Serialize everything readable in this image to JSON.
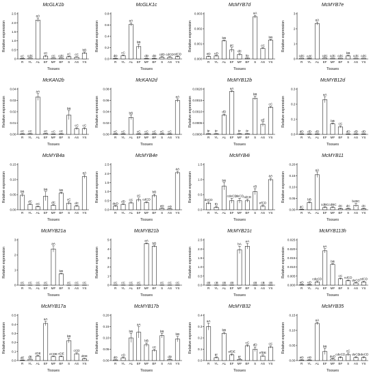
{
  "common": {
    "ylabel": "Relative expression",
    "xlabel": "Tissues"
  },
  "chart_data": [
    {
      "type": "bar",
      "title": "McGLK1b",
      "ymax": 2.5,
      "ticks": [
        [
          0,
          "0"
        ],
        [
          0.5,
          "0.5"
        ],
        [
          1.0,
          "1.0"
        ],
        [
          1.5,
          "1.5"
        ],
        [
          2.0,
          "2.0"
        ],
        [
          2.5,
          "2.5"
        ]
      ],
      "categories": [
        "R",
        "YL",
        "AL",
        "EF",
        "MF",
        "BF",
        "S",
        "AS",
        "YS"
      ],
      "values": [
        0.03,
        0.05,
        2.15,
        0.15,
        0.05,
        0.05,
        0.12,
        0.1,
        0.33
      ],
      "errors": [
        0.01,
        0.01,
        0.12,
        0.05,
        0.01,
        0.01,
        0.03,
        0.02,
        0.05
      ],
      "labels": [
        "cC",
        "cdC",
        "aA",
        "cC",
        "cC",
        "cdC",
        "cC",
        "cC",
        "bB"
      ]
    },
    {
      "type": "bar",
      "title": "McGLK1c",
      "ymax": 0.8,
      "ticks": [
        [
          0,
          "0.0"
        ],
        [
          0.2,
          "0.2"
        ],
        [
          0.4,
          "0.4"
        ],
        [
          0.6,
          "0.6"
        ],
        [
          0.8,
          "0.8"
        ]
      ],
      "categories": [
        "R",
        "YL",
        "AL",
        "EF",
        "MF",
        "BF",
        "S",
        "AS",
        "YS"
      ],
      "values": [
        0.01,
        0.06,
        0.61,
        0.22,
        0.01,
        0.01,
        0.03,
        0.03,
        0.04
      ],
      "errors": [
        0.005,
        0.01,
        0.03,
        0.04,
        0.005,
        0.005,
        0.01,
        0.01,
        0.01
      ],
      "labels": [
        "dD",
        "cC",
        "aA",
        "bB",
        "dD",
        "dD",
        "cdD",
        "cdCD",
        "cdCD"
      ]
    },
    {
      "type": "bar",
      "title": "McMYB7d",
      "ymax": 0.003,
      "ticks": [
        [
          0,
          "0.000"
        ],
        [
          0.001,
          "0.001"
        ],
        [
          0.002,
          "0.002"
        ],
        [
          0.003,
          "0.003"
        ]
      ],
      "categories": [
        "R",
        "YL",
        "AL",
        "EF",
        "MF",
        "BF",
        "S",
        "AS",
        "YS"
      ],
      "values": [
        0.00016,
        0.0002,
        0.0012,
        0.0006,
        0.0003,
        5e-05,
        0.0028,
        0.0007,
        0.00125
      ],
      "errors": [
        3e-05,
        3e-05,
        4e-05,
        0.00015,
        8e-05,
        2e-05,
        0.0001,
        5e-05,
        5e-05
      ],
      "labels": [
        "eD",
        "eD",
        "bB",
        "dC",
        "dC",
        "fD",
        "aA",
        "cC",
        "bB"
      ]
    },
    {
      "type": "bar",
      "title": "McMYB7e",
      "ymax": 3,
      "ticks": [
        [
          0,
          "0"
        ],
        [
          1,
          "1"
        ],
        [
          2,
          "2"
        ],
        [
          3,
          "3"
        ]
      ],
      "categories": [
        "R",
        "YL",
        "AL",
        "EF",
        "MF",
        "BF",
        "S",
        "AS",
        "YS"
      ],
      "values": [
        0.05,
        0.04,
        2.35,
        0.06,
        0.05,
        0.05,
        0.2,
        0.05,
        0.05
      ],
      "errors": [
        0.01,
        0.01,
        0.1,
        0.01,
        0.01,
        0.01,
        0.04,
        0.01,
        0.01
      ],
      "labels": [
        "cdC",
        "cdC",
        "aA",
        "cdC",
        "cdC",
        "cdC",
        "bB",
        "cdC",
        "cdC"
      ]
    },
    {
      "type": "bar",
      "title": "McKAN2b",
      "ymax": 0.04,
      "ticks": [
        [
          0,
          "0.00"
        ],
        [
          0.01,
          "0.01"
        ],
        [
          0.02,
          "0.02"
        ],
        [
          0.03,
          "0.03"
        ],
        [
          0.04,
          "0.04"
        ]
      ],
      "categories": [
        "R",
        "YL",
        "AL",
        "EF",
        "MF",
        "BF",
        "S",
        "AS",
        "YS"
      ],
      "values": [
        0.0005,
        0.0006,
        0.033,
        0.0007,
        0.0004,
        0.0005,
        0.017,
        0.005,
        0.005
      ],
      "errors": [
        0.0002,
        0.0002,
        0.003,
        0.0002,
        0.0001,
        0.0002,
        0.004,
        0.001,
        0.001
      ],
      "labels": [
        "cC",
        "cC",
        "aA",
        "cC",
        "cC",
        "cC",
        "bB",
        "cC",
        "cC"
      ]
    },
    {
      "type": "bar",
      "title": "McKAN2d",
      "ymax": 0.08,
      "ticks": [
        [
          0,
          "0.00"
        ],
        [
          0.02,
          "0.02"
        ],
        [
          0.04,
          "0.04"
        ],
        [
          0.06,
          "0.06"
        ],
        [
          0.08,
          "0.08"
        ]
      ],
      "categories": [
        "R",
        "YL",
        "AL",
        "EF",
        "MF",
        "BF",
        "S",
        "AS",
        "YS"
      ],
      "values": [
        0.001,
        0.001,
        0.03,
        0.001,
        0.001,
        0.001,
        0.001,
        0.001,
        0.06
      ],
      "errors": [
        0.0003,
        0.0003,
        0.004,
        0.0003,
        0.0003,
        0.0003,
        0.0003,
        0.0003,
        0.003
      ],
      "labels": [
        "cC",
        "cC",
        "bB",
        "cC",
        "cC",
        "cC",
        "cC",
        "cC",
        "aA"
      ]
    },
    {
      "type": "bar",
      "title": "McMYB12b",
      "ymax": 0.002,
      "ticks": [
        [
          0,
          "0.0000"
        ],
        [
          0.0005,
          "0.0005"
        ],
        [
          0.001,
          "0.0010"
        ],
        [
          0.0015,
          "0.0015"
        ],
        [
          0.002,
          "0.0020"
        ]
      ],
      "categories": [
        "R",
        "YL",
        "AL",
        "EF",
        "MF",
        "BF",
        "S",
        "AS",
        "YS"
      ],
      "values": [
        3e-05,
        3e-05,
        0.00085,
        0.0019,
        3e-05,
        3e-05,
        0.0016,
        0.00045,
        0.0012
      ],
      "errors": [
        1e-05,
        1e-05,
        5e-05,
        4e-05,
        1e-05,
        1e-05,
        8e-05,
        0.0001,
        4e-05
      ],
      "labels": [
        "fF",
        "fF",
        "dD",
        "aA",
        "fF",
        "fF",
        "bB",
        "eE",
        "cC"
      ]
    },
    {
      "type": "bar",
      "title": "McMYB12d",
      "ymax": 0.3,
      "ticks": [
        [
          0,
          "0.0"
        ],
        [
          0.1,
          "0.1"
        ],
        [
          0.2,
          "0.2"
        ],
        [
          0.3,
          "0.3"
        ]
      ],
      "categories": [
        "R",
        "YL",
        "AL",
        "EF",
        "MF",
        "BF",
        "S",
        "AS",
        "YS"
      ],
      "values": [
        0.003,
        0.003,
        0.003,
        0.23,
        0.07,
        0.05,
        0.003,
        0.003,
        0.003
      ],
      "errors": [
        0.001,
        0.001,
        0.001,
        0.02,
        0.005,
        0.006,
        0.001,
        0.001,
        0.001
      ],
      "labels": [
        "dD",
        "dD",
        "dD",
        "aA",
        "bB",
        "cC",
        "dD",
        "dD",
        "dD"
      ]
    },
    {
      "type": "bar",
      "title": "McMYB4a",
      "ymax": 0.15,
      "ticks": [
        [
          0,
          "0.00"
        ],
        [
          0.05,
          "0.05"
        ],
        [
          0.1,
          "0.10"
        ],
        [
          0.15,
          "0.15"
        ]
      ],
      "categories": [
        "R",
        "YL",
        "AL",
        "EF",
        "MF",
        "BF",
        "S",
        "AS",
        "YS"
      ],
      "values": [
        0.048,
        0.018,
        0.01,
        0.045,
        0.015,
        0.055,
        0.022,
        0.012,
        0.11
      ],
      "errors": [
        0.005,
        0.002,
        0.002,
        0.015,
        0.002,
        0.003,
        0.005,
        0.002,
        0.006
      ],
      "labels": [
        "bB",
        "dC",
        "eC",
        "bB",
        "dC",
        "bB",
        "cC",
        "dC",
        "aA"
      ]
    },
    {
      "type": "bar",
      "title": "McMYB4e",
      "ymax": 2.5,
      "ticks": [
        [
          0,
          "0.0"
        ],
        [
          0.5,
          "0.5"
        ],
        [
          1.0,
          "1.0"
        ],
        [
          1.5,
          "1.5"
        ],
        [
          2.0,
          "2.0"
        ],
        [
          2.5,
          "2.5"
        ]
      ],
      "categories": [
        "R",
        "YL",
        "AL",
        "EF",
        "MF",
        "BF",
        "S",
        "AS",
        "YS"
      ],
      "values": [
        0.2,
        0.3,
        0.38,
        0.55,
        0.4,
        0.78,
        0.08,
        0.05,
        2.05
      ],
      "errors": [
        0.03,
        0.03,
        0.05,
        0.1,
        0.05,
        0.08,
        0.02,
        0.01,
        0.08
      ],
      "labels": [
        "deD",
        "dD",
        "cC",
        "cC",
        "cdCD",
        "bB",
        "eD",
        "eD",
        "aA"
      ]
    },
    {
      "type": "bar",
      "title": "McMYB4i",
      "ymax": 1.5,
      "ticks": [
        [
          0,
          "0.0"
        ],
        [
          0.5,
          "0.5"
        ],
        [
          1.0,
          "1.0"
        ],
        [
          1.5,
          "1.5"
        ]
      ],
      "categories": [
        "R",
        "YL",
        "AL",
        "EF",
        "MF",
        "BF",
        "S",
        "AS",
        "YS"
      ],
      "values": [
        0.22,
        0.08,
        0.78,
        0.3,
        0.3,
        0.3,
        0.6,
        0.12,
        1.0
      ],
      "errors": [
        0.04,
        0.03,
        0.12,
        0.08,
        0.08,
        0.05,
        0.1,
        0.04,
        0.05
      ],
      "labels": [
        "deCD",
        "fD",
        "bB",
        "cdeCD",
        "deCD",
        "cdCD",
        "cB",
        "efCD",
        "aA"
      ]
    },
    {
      "type": "bar",
      "title": "McMYB11",
      "ymax": 0.2,
      "ticks": [
        [
          0,
          "0.00"
        ],
        [
          0.05,
          "0.05"
        ],
        [
          0.1,
          "0.10"
        ],
        [
          0.15,
          "0.15"
        ],
        [
          0.2,
          "0.20"
        ]
      ],
      "categories": [
        "R",
        "YL",
        "AL",
        "EF",
        "MF",
        "BF",
        "S",
        "AS",
        "YS"
      ],
      "values": [
        0.002,
        0.032,
        0.155,
        0.01,
        0.01,
        0.005,
        0.005,
        0.02,
        0.005
      ],
      "errors": [
        0.001,
        0.004,
        0.012,
        0.003,
        0.003,
        0.002,
        0.002,
        0.008,
        0.002
      ],
      "labels": [
        "dC",
        "bB",
        "aA",
        "cdBC",
        "cdBC",
        "dC",
        "dC",
        "bcBC",
        "dC"
      ]
    },
    {
      "type": "bar",
      "title": "McMYB21a",
      "ymax": 3,
      "ticks": [
        [
          0,
          "0"
        ],
        [
          1,
          "1"
        ],
        [
          2,
          "2"
        ],
        [
          3,
          "3"
        ]
      ],
      "categories": [
        "R",
        "YL",
        "AL",
        "EF",
        "MF",
        "BF",
        "S",
        "AS",
        "YS"
      ],
      "values": [
        0.01,
        0.01,
        0.01,
        0.01,
        2.4,
        0.75,
        0.01,
        0.01,
        0.01
      ],
      "errors": [
        0.005,
        0.005,
        0.005,
        0.005,
        0.2,
        0.03,
        0.005,
        0.005,
        0.005
      ],
      "labels": [
        "cC",
        "cC",
        "cC",
        "cC",
        "aA",
        "bB",
        "cC",
        "cC",
        "cC"
      ]
    },
    {
      "type": "bar",
      "title": "McMYB21b",
      "ymax": 5,
      "ticks": [
        [
          0,
          "0"
        ],
        [
          1,
          "1"
        ],
        [
          2,
          "2"
        ],
        [
          3,
          "3"
        ],
        [
          4,
          "4"
        ],
        [
          5,
          "5"
        ]
      ],
      "categories": [
        "R",
        "YL",
        "AL",
        "EF",
        "MF",
        "BF",
        "S",
        "AS",
        "YS"
      ],
      "values": [
        0.02,
        0.02,
        0.02,
        0.02,
        4.6,
        4.3,
        0.02,
        0.02,
        0.02
      ],
      "errors": [
        0.01,
        0.01,
        0.01,
        0.01,
        0.08,
        0.1,
        0.01,
        0.01,
        0.01
      ],
      "labels": [
        "cC",
        "cC",
        "cC",
        "cC",
        "aA",
        "bB",
        "cC",
        "cC",
        "cC"
      ]
    },
    {
      "type": "bar",
      "title": "McMYB21c",
      "ymax": 2.5,
      "ticks": [
        [
          0,
          "0.0"
        ],
        [
          0.5,
          "0.5"
        ],
        [
          1.0,
          "1.0"
        ],
        [
          1.5,
          "1.5"
        ],
        [
          2.0,
          "2.0"
        ],
        [
          2.5,
          "2.5"
        ]
      ],
      "categories": [
        "R",
        "YL",
        "AL",
        "EF",
        "MF",
        "BF",
        "S",
        "AS",
        "YS"
      ],
      "values": [
        0.01,
        0.01,
        0.01,
        0.01,
        1.95,
        2.15,
        0.01,
        0.01,
        0.01
      ],
      "errors": [
        0.005,
        0.005,
        0.005,
        0.005,
        0.2,
        0.15,
        0.005,
        0.005,
        0.005
      ],
      "labels": [
        "cB",
        "cB",
        "cB",
        "cB",
        "bA",
        "aA",
        "cB",
        "cB",
        "cB"
      ]
    },
    {
      "type": "bar",
      "title": "McMYB113h",
      "ymax": 0.025,
      "ticks": [
        [
          0,
          "0.000"
        ],
        [
          0.005,
          "0.005"
        ],
        [
          0.01,
          "0.010"
        ],
        [
          0.015,
          "0.015"
        ],
        [
          0.02,
          "0.020"
        ],
        [
          0.025,
          "0.025"
        ]
      ],
      "categories": [
        "R",
        "YL",
        "AL",
        "EF",
        "MF",
        "BF",
        "S",
        "AS",
        "YS"
      ],
      "values": [
        0.0003,
        0.0003,
        0.0018,
        0.019,
        0.0115,
        0.0035,
        0.0025,
        0.0012,
        0.0018
      ],
      "errors": [
        0.0001,
        0.0001,
        0.0005,
        0.0012,
        0.0004,
        0.0005,
        0.0004,
        0.0003,
        0.0004
      ],
      "labels": [
        "eD",
        "eD",
        "cdeCD",
        "aA",
        "bB",
        "cC",
        "cdCD",
        "deCD",
        "cdCD"
      ]
    },
    {
      "type": "bar",
      "title": "McMYB17a",
      "ymax": 0.5,
      "ticks": [
        [
          0,
          "0.0"
        ],
        [
          0.1,
          "0.1"
        ],
        [
          0.2,
          "0.2"
        ],
        [
          0.3,
          "0.3"
        ],
        [
          0.4,
          "0.4"
        ],
        [
          0.5,
          "0.5"
        ]
      ],
      "categories": [
        "R",
        "YL",
        "AL",
        "EF",
        "MF",
        "BF",
        "S",
        "AS",
        "YS"
      ],
      "values": [
        0.005,
        0.015,
        0.05,
        0.41,
        0.045,
        0.045,
        0.22,
        0.075,
        0.02
      ],
      "errors": [
        0.002,
        0.004,
        0.006,
        0.025,
        0.005,
        0.006,
        0.025,
        0.01,
        0.004
      ],
      "labels": [
        "dE",
        "dE",
        "cDE",
        "aA",
        "cCDE",
        "cDE",
        "bB",
        "cCD",
        "dDE"
      ]
    },
    {
      "type": "bar",
      "title": "McMYB17b",
      "ymax": 0.2,
      "ticks": [
        [
          0,
          "0.00"
        ],
        [
          0.05,
          "0.05"
        ],
        [
          0.1,
          "0.10"
        ],
        [
          0.15,
          "0.15"
        ],
        [
          0.2,
          "0.20"
        ]
      ],
      "categories": [
        "R",
        "YL",
        "AL",
        "EF",
        "MF",
        "BF",
        "S",
        "AS",
        "YS"
      ],
      "values": [
        0.003,
        0.012,
        0.1,
        0.125,
        0.07,
        0.045,
        0.11,
        0.005,
        0.095
      ],
      "errors": [
        0.001,
        0.003,
        0.02,
        0.025,
        0.008,
        0.005,
        0.01,
        0.002,
        0.012
      ],
      "labels": [
        "dD",
        "cD",
        "bB",
        "aA",
        "bB",
        "cC",
        "bB",
        "dD",
        "bB"
      ]
    },
    {
      "type": "bar",
      "title": "McMYB32",
      "ymax": 0.4,
      "ticks": [
        [
          0,
          "0.0"
        ],
        [
          0.1,
          "0.1"
        ],
        [
          0.2,
          "0.2"
        ],
        [
          0.3,
          "0.3"
        ],
        [
          0.4,
          "0.4"
        ]
      ],
      "categories": [
        "R",
        "YL",
        "AL",
        "EF",
        "MF",
        "BF",
        "S",
        "AS",
        "YS"
      ],
      "values": [
        0.3,
        0.025,
        0.24,
        0.05,
        0.01,
        0.13,
        0.1,
        0.04,
        0.12
      ],
      "errors": [
        0.03,
        0.005,
        0.01,
        0.01,
        0.003,
        0.01,
        0.02,
        0.01,
        0.01
      ],
      "labels": [
        "aA",
        "fE",
        "bB",
        "efDE",
        "fE",
        "cC",
        "dD",
        "efDE",
        "cC"
      ]
    },
    {
      "type": "bar",
      "title": "McMYB35",
      "ymax": 0.15,
      "ticks": [
        [
          0,
          "0.00"
        ],
        [
          0.05,
          "0.05"
        ],
        [
          0.1,
          "0.10"
        ],
        [
          0.15,
          "0.15"
        ]
      ],
      "categories": [
        "R",
        "YL",
        "AL",
        "EF",
        "MF",
        "BF",
        "S",
        "AS",
        "YS"
      ],
      "values": [
        0.002,
        0.002,
        0.123,
        0.03,
        0.005,
        0.01,
        0.02,
        0.01,
        0.01
      ],
      "errors": [
        0.001,
        0.001,
        0.004,
        0.01,
        0.002,
        0.003,
        0.005,
        0.003,
        0.003
      ],
      "labels": [
        "eD",
        "eD",
        "aA",
        "bB",
        "deD",
        "cdeCD",
        "cC",
        "deCD",
        "cdeCD"
      ]
    }
  ]
}
